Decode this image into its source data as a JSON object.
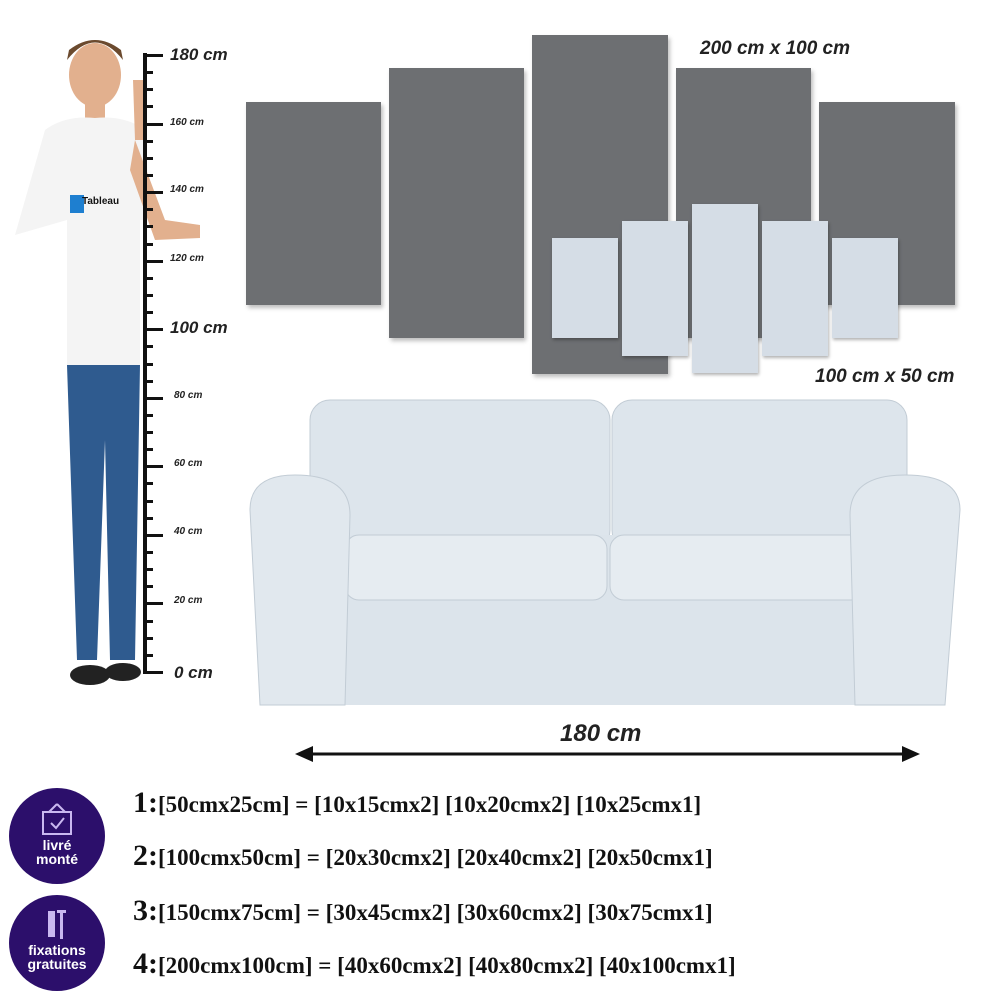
{
  "wall_art": {
    "large_label": "200 cm x 100 cm",
    "small_label": "100 cm x 50 cm"
  },
  "ruler": {
    "labels": [
      "180 cm",
      "160 cm",
      "140 cm",
      "120 cm",
      "100 cm",
      "80 cm",
      "60 cm",
      "40 cm",
      "20 cm",
      "0 cm"
    ]
  },
  "person": {
    "shirt_logo": "Tableau"
  },
  "sofa": {
    "width_label": "180 cm"
  },
  "badges": [
    {
      "label_line1": "livré",
      "label_line2": "monté",
      "icon": "framed-check-icon"
    },
    {
      "label_line1": "fixations",
      "label_line2": "gratuites",
      "icon": "screws-icon"
    }
  ],
  "sizes": [
    {
      "num": "1:",
      "text": "[50cmx25cm] = [10x15cmx2] [10x20cmx2] [10x25cmx1]"
    },
    {
      "num": "2:",
      "text": "[100cmx50cm] = [20x30cmx2] [20x40cmx2] [20x50cmx1]"
    },
    {
      "num": "3:",
      "text": "[150cmx75cm] = [30x45cmx2] [30x60cmx2] [30x75cmx1]"
    },
    {
      "num": "4:",
      "text": "[200cmx100cm] = [40x60cmx2] [40x80cmx2] [40x100cmx1]"
    }
  ],
  "colors": {
    "badge": "#2c0f6b",
    "large_panel": "#6d6f72",
    "small_panel": "#d5dde6",
    "sofa": "#dfe6ec"
  }
}
